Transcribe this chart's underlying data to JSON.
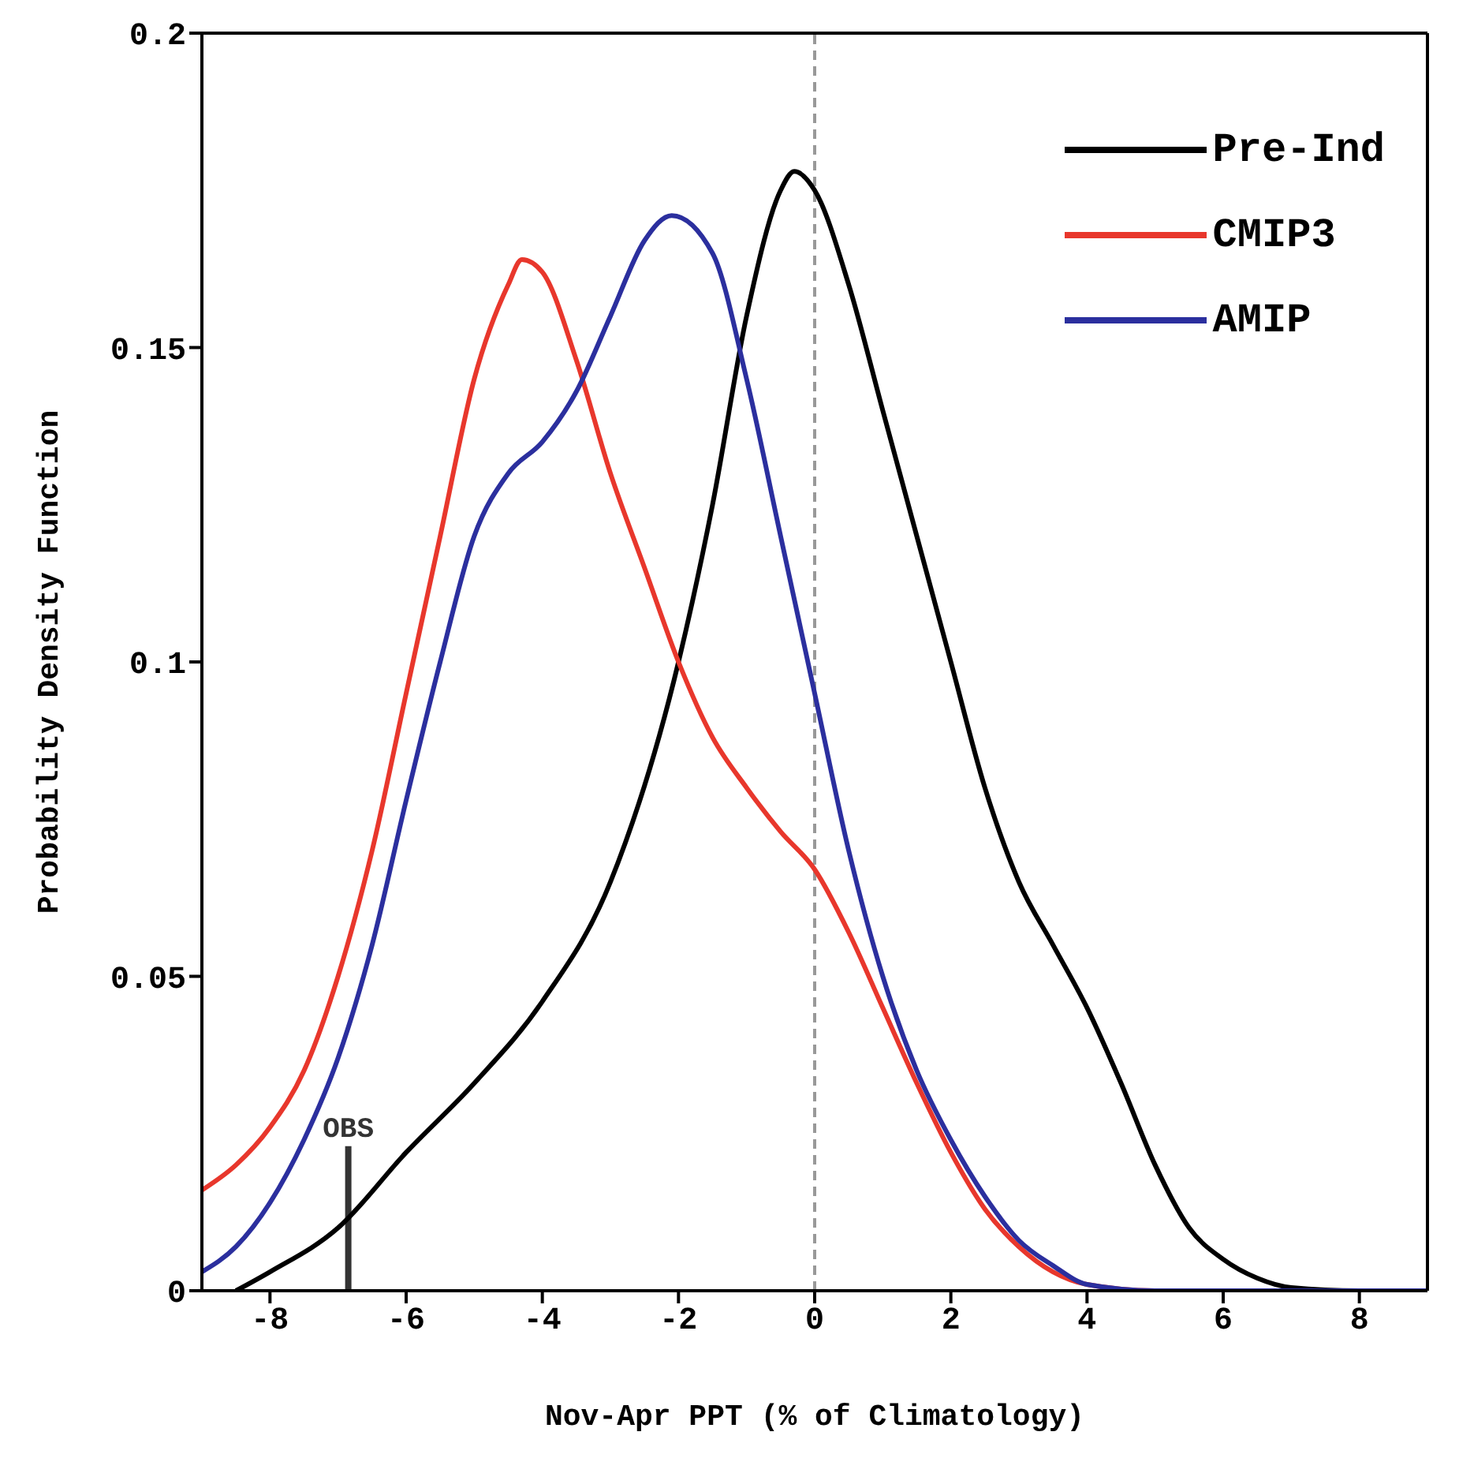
{
  "chart_data": {
    "type": "line",
    "xlabel": "Nov-Apr PPT (% of Climatology)",
    "ylabel": "Probability Density Function",
    "xlim": [
      -9,
      9
    ],
    "xticks": [
      -8,
      -6,
      -4,
      -2,
      0,
      2,
      4,
      6,
      8
    ],
    "ylim": [
      0,
      0.2
    ],
    "yticks": [
      0,
      0.05,
      0.1,
      0.15,
      0.2
    ],
    "legend": "top right",
    "marker": "none",
    "line_style": "solid",
    "ref_lines": [
      {
        "axis": "x",
        "value": 0,
        "color": "#999999",
        "line_style": "dashed"
      },
      {
        "axis": "x",
        "value": -6.85,
        "label": "OBS",
        "color": "#333333"
      }
    ],
    "series": [
      {
        "name": "Pre-Ind",
        "color": "#000000",
        "x": [
          -8.5,
          -8,
          -7,
          -6,
          -5,
          -4,
          -3,
          -2,
          -1.5,
          -1,
          -0.5,
          -0.3,
          0,
          0.5,
          1,
          1.5,
          2,
          2.5,
          3,
          3.5,
          4,
          4.5,
          5,
          5.5,
          6,
          6.5,
          7,
          8,
          9
        ],
        "values": [
          0,
          0.003,
          0.01,
          0.022,
          0.033,
          0.046,
          0.065,
          0.1,
          0.125,
          0.155,
          0.175,
          0.178,
          0.175,
          0.16,
          0.14,
          0.12,
          0.1,
          0.08,
          0.065,
          0.055,
          0.045,
          0.033,
          0.02,
          0.01,
          0.005,
          0.002,
          0.0005,
          0,
          0
        ]
      },
      {
        "name": "CMIP3",
        "color": "#e8372c",
        "x": [
          -9,
          -8.5,
          -8,
          -7.5,
          -7,
          -6.5,
          -6,
          -5.5,
          -5,
          -4.5,
          -4.3,
          -4,
          -3.5,
          -3,
          -2.5,
          -2,
          -1.5,
          -1,
          -0.5,
          0,
          0.5,
          1,
          1.5,
          2,
          2.5,
          3,
          3.5,
          4,
          5,
          9
        ],
        "values": [
          0.016,
          0.02,
          0.026,
          0.035,
          0.05,
          0.07,
          0.095,
          0.12,
          0.145,
          0.16,
          0.164,
          0.162,
          0.148,
          0.13,
          0.115,
          0.1,
          0.088,
          0.08,
          0.073,
          0.067,
          0.057,
          0.045,
          0.033,
          0.022,
          0.013,
          0.007,
          0.003,
          0.001,
          0,
          0
        ]
      },
      {
        "name": "AMIP",
        "color": "#2b2f9e",
        "x": [
          -9,
          -8.5,
          -8,
          -7.5,
          -7,
          -6.5,
          -6,
          -5.5,
          -5,
          -4.5,
          -4,
          -3.5,
          -3,
          -2.5,
          -2.1,
          -1.5,
          -1,
          -0.5,
          0,
          0.5,
          1,
          1.5,
          2,
          2.5,
          3,
          3.5,
          4,
          5,
          9
        ],
        "values": [
          0.003,
          0.007,
          0.014,
          0.024,
          0.037,
          0.055,
          0.078,
          0.1,
          0.12,
          0.13,
          0.135,
          0.143,
          0.155,
          0.167,
          0.171,
          0.165,
          0.145,
          0.12,
          0.095,
          0.07,
          0.05,
          0.035,
          0.024,
          0.015,
          0.008,
          0.004,
          0.001,
          0,
          0
        ]
      }
    ]
  }
}
